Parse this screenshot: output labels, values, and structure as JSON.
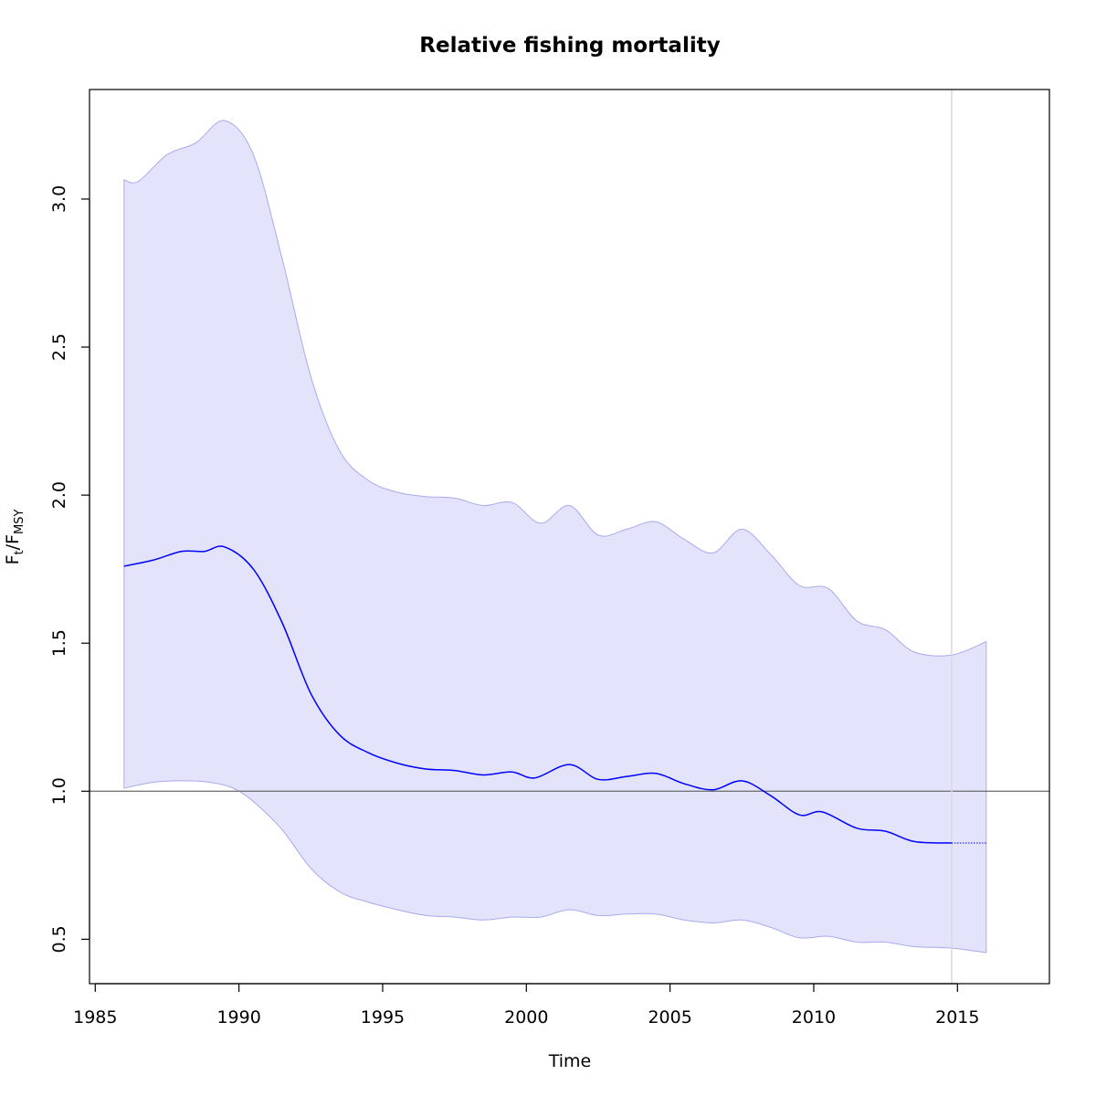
{
  "chart_data": {
    "type": "line",
    "title": "Relative fishing mortality",
    "xlabel": "Time",
    "ylabel": {
      "main": "F",
      "sub1": "t",
      "sep": "/",
      "main2": "F",
      "sub2": "MSY"
    },
    "xlim": [
      1984.8,
      2018.2
    ],
    "ylim": [
      0.35,
      3.37
    ],
    "x_ticks": [
      "1985",
      "1990",
      "1995",
      "2000",
      "2005",
      "2010",
      "2015"
    ],
    "y_ticks": [
      "0.5",
      "1.0",
      "1.5",
      "2.0",
      "2.5",
      "3.0"
    ],
    "reference_line_y": 1.0,
    "vertical_marker_x": 2014.8,
    "colors": {
      "estimate": "#0000ff",
      "band_fill": "#e3e3fb",
      "band_edge": "#a9a9f0",
      "reference_line": "#777777",
      "vertical_marker": "#d9d9d9"
    },
    "series": [
      {
        "role": "estimate",
        "x": [
          1986,
          1987,
          1988,
          1988.8,
          1989.5,
          1990.5,
          1991.5,
          1992.5,
          1993.5,
          1994.5,
          1995.5,
          1996.5,
          1997.5,
          1998.5,
          1999.5,
          2000.3,
          2001.5,
          2002.5,
          2003.5,
          2004.5,
          2005.5,
          2006.5,
          2007.5,
          2008.5,
          2009.5,
          2010.3,
          2011.5,
          2012.5,
          2013.5,
          2014.8
        ],
        "y": [
          1.76,
          1.78,
          1.81,
          1.81,
          1.825,
          1.75,
          1.57,
          1.33,
          1.19,
          1.13,
          1.095,
          1.075,
          1.07,
          1.055,
          1.065,
          1.045,
          1.09,
          1.04,
          1.05,
          1.06,
          1.025,
          1.005,
          1.035,
          0.985,
          0.92,
          0.93,
          0.875,
          0.865,
          0.83,
          0.825
        ]
      },
      {
        "role": "projection",
        "x": [
          2014.8,
          2016
        ],
        "y": [
          0.825,
          0.825
        ]
      },
      {
        "role": "upper",
        "x": [
          1986,
          1986.5,
          1987.5,
          1988.5,
          1989.5,
          1990.5,
          1991.5,
          1992.5,
          1993.5,
          1994.5,
          1995.5,
          1996.5,
          1997.5,
          1998.5,
          1999.5,
          2000.5,
          2001.5,
          2002.5,
          2003.5,
          2004.5,
          2005.5,
          2006.5,
          2007.5,
          2008.5,
          2009.5,
          2010.5,
          2011.5,
          2012.5,
          2013.5,
          2014.8,
          2016
        ],
        "y": [
          3.065,
          3.06,
          3.15,
          3.19,
          3.265,
          3.15,
          2.8,
          2.4,
          2.15,
          2.05,
          2.01,
          1.995,
          1.99,
          1.965,
          1.975,
          1.905,
          1.965,
          1.865,
          1.885,
          1.91,
          1.85,
          1.805,
          1.885,
          1.8,
          1.695,
          1.685,
          1.575,
          1.545,
          1.47,
          1.46,
          1.505
        ]
      },
      {
        "role": "lower",
        "x": [
          1986,
          1987,
          1988,
          1989,
          1989.8,
          1990.5,
          1991.5,
          1992.5,
          1993.5,
          1994.5,
          1995.5,
          1996.5,
          1997.5,
          1998.5,
          1999.5,
          2000.5,
          2001.5,
          2002.5,
          2003.5,
          2004.5,
          2005.5,
          2006.5,
          2007.5,
          2008.5,
          2009.5,
          2010.5,
          2011.5,
          2012.5,
          2013.5,
          2014.8,
          2016
        ],
        "y": [
          1.01,
          1.03,
          1.035,
          1.03,
          1.01,
          0.965,
          0.87,
          0.74,
          0.66,
          0.625,
          0.6,
          0.58,
          0.575,
          0.565,
          0.575,
          0.575,
          0.6,
          0.58,
          0.585,
          0.585,
          0.565,
          0.555,
          0.565,
          0.54,
          0.505,
          0.51,
          0.49,
          0.49,
          0.475,
          0.47,
          0.455
        ]
      }
    ]
  }
}
